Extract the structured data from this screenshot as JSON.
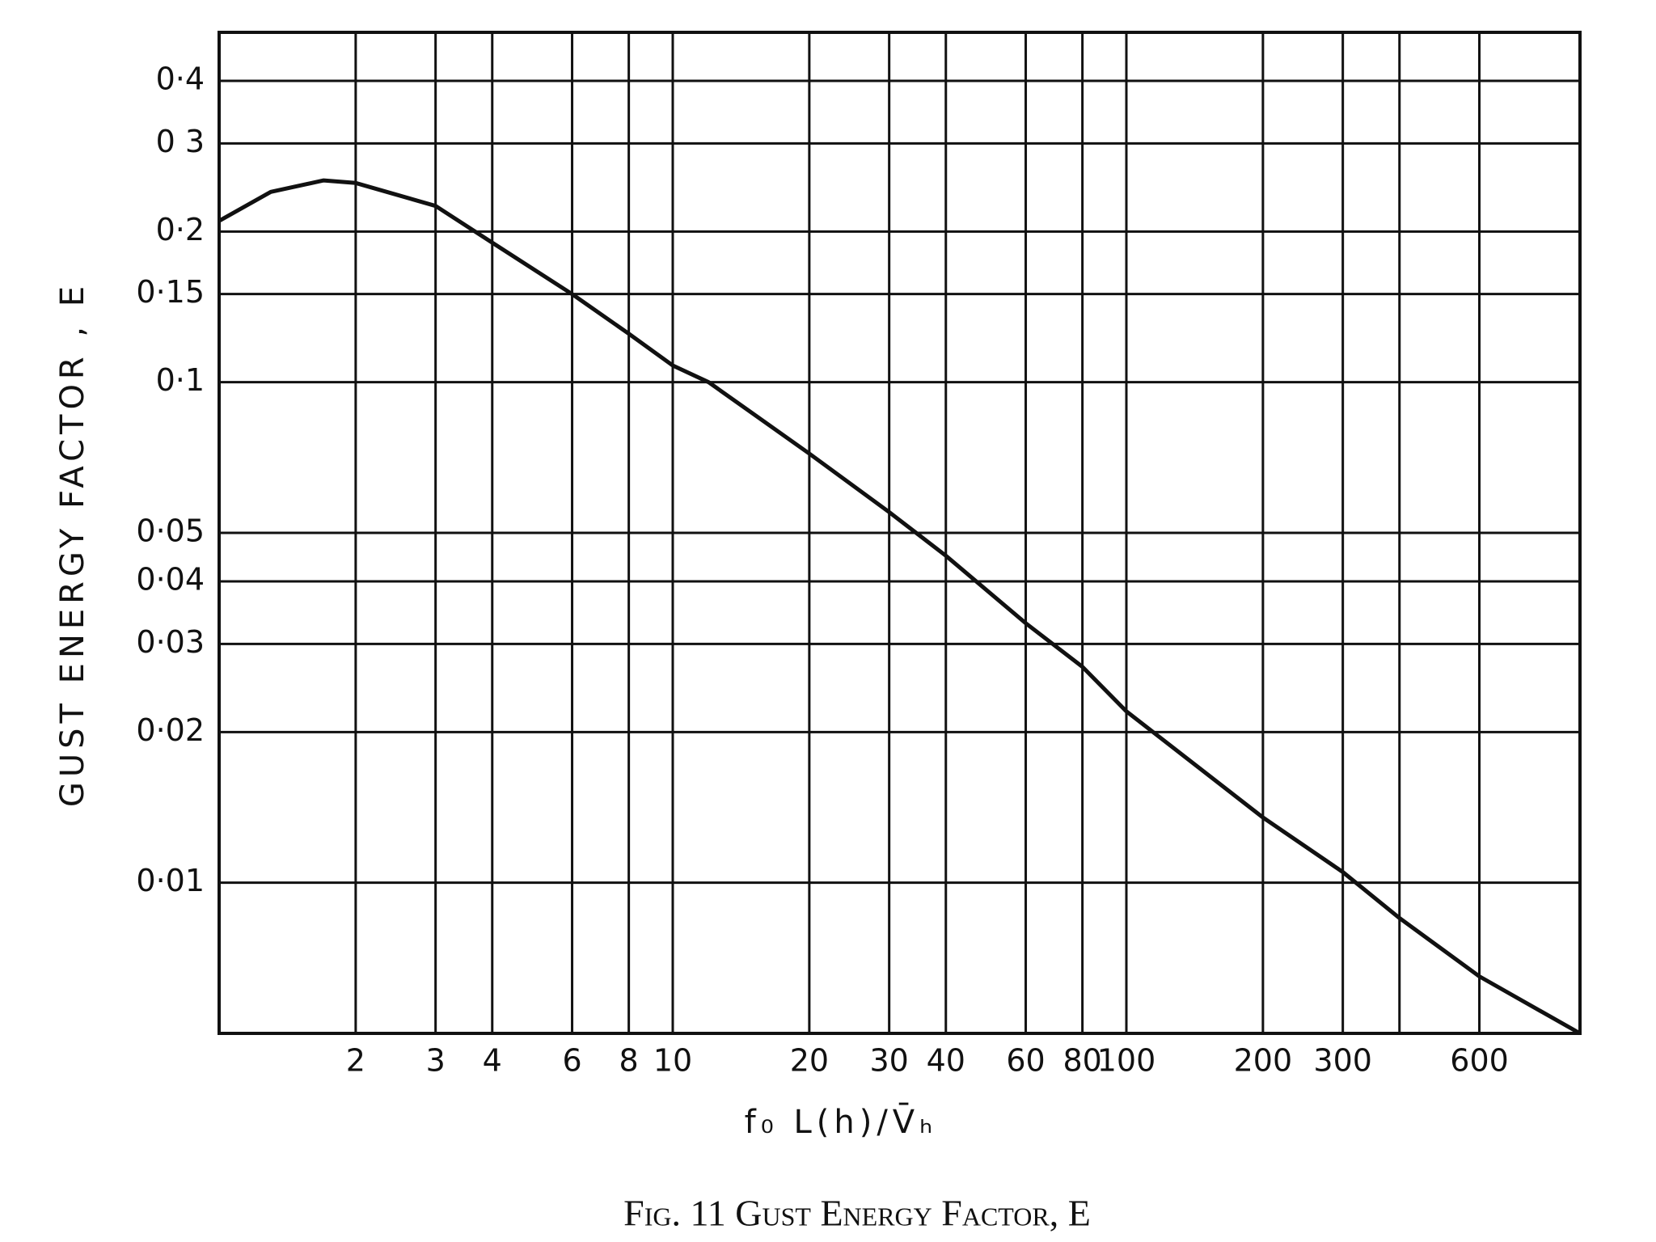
{
  "chart_data": {
    "type": "line",
    "caption": "Fig. 11  Gust Energy Factor, E",
    "x_label": "f₀ L(h)/V̄ₕ",
    "y_label": "GUST ENERGY FACTOR , E",
    "log_x": true,
    "log_y": true,
    "grid": true,
    "color": "#111111",
    "xlim": [
      1,
      1000
    ],
    "ylim": [
      0.005,
      0.5
    ],
    "xticks": [
      2,
      3,
      4,
      6,
      8,
      10,
      20,
      30,
      40,
      60,
      80,
      100,
      200,
      300,
      {
        "value": 400,
        "label": null
      },
      600
    ],
    "yticks": [
      {
        "value": 0.4,
        "label": "0·4"
      },
      {
        "value": 0.3,
        "label": "0 3"
      },
      {
        "value": 0.2,
        "label": "0·2"
      },
      {
        "value": 0.15,
        "label": "0·15"
      },
      {
        "value": 0.1,
        "label": "0·1"
      },
      {
        "value": 0.05,
        "label": "0·05"
      },
      {
        "value": 0.04,
        "label": "0·04"
      },
      {
        "value": 0.03,
        "label": "0·03"
      },
      {
        "value": 0.02,
        "label": "0·02"
      },
      {
        "value": 0.01,
        "label": "0·01"
      }
    ],
    "x": [
      1,
      1.3,
      1.7,
      2,
      3,
      4,
      6,
      8,
      10,
      12,
      20,
      30,
      40,
      60,
      80,
      100,
      200,
      300,
      400,
      600,
      1000
    ],
    "values": [
      0.21,
      0.24,
      0.253,
      0.25,
      0.225,
      0.19,
      0.15,
      0.125,
      0.108,
      0.1,
      0.072,
      0.055,
      0.045,
      0.033,
      0.027,
      0.022,
      0.0135,
      0.0105,
      0.0085,
      0.0065,
      0.005
    ]
  }
}
